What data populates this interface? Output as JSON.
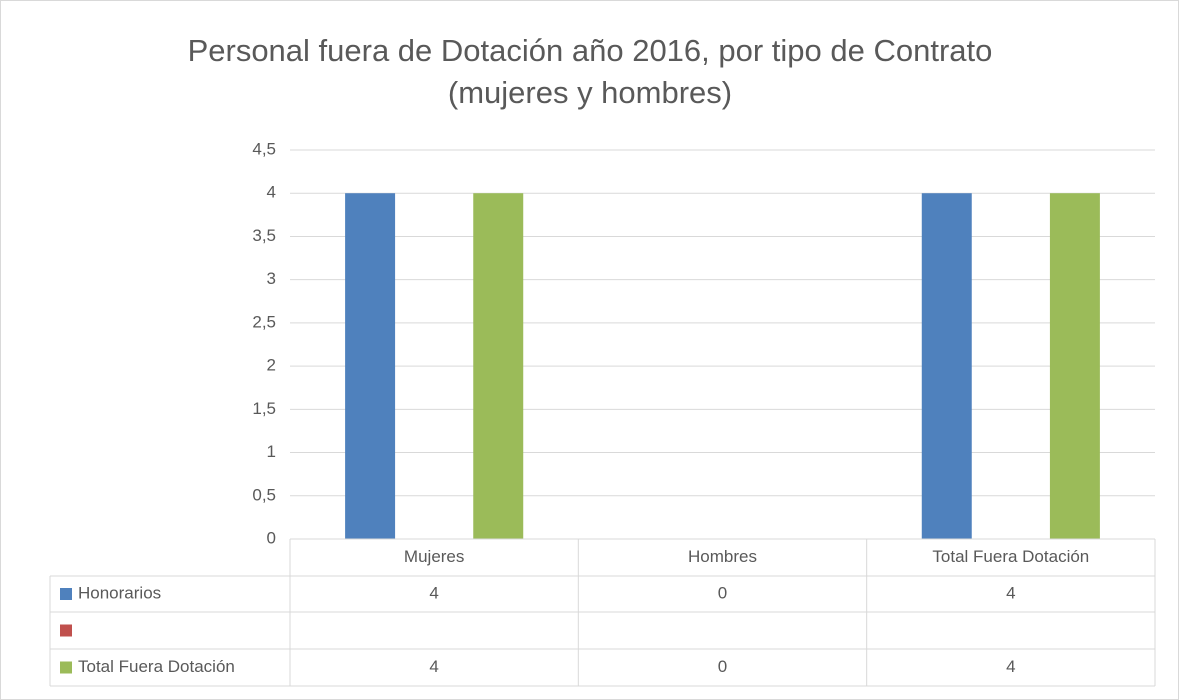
{
  "chart_data": {
    "type": "bar",
    "title": "Personal fuera de Dotación año 2016, por tipo de Contrato (mujeres y hombres)",
    "categories": [
      "Mujeres",
      "Hombres",
      "Total Fuera Dotación"
    ],
    "series": [
      {
        "name": "Honorarios",
        "color": "#4f81bd",
        "values": [
          4,
          0,
          4
        ]
      },
      {
        "name": null,
        "color": "#c0504d",
        "values": [
          null,
          null,
          null
        ]
      },
      {
        "name": "Total Fuera Dotación",
        "color": "#9bbb59",
        "values": [
          4,
          0,
          4
        ]
      }
    ],
    "ylim": [
      0,
      4.5
    ],
    "yticks": [
      0,
      {
        "value": 0.5,
        "label": "0,5"
      },
      1,
      {
        "value": 1.5,
        "label": "1,5"
      },
      2,
      {
        "value": 2.5,
        "label": "2,5"
      },
      3,
      {
        "value": 3.5,
        "label": "3,5"
      },
      4,
      {
        "value": 4.5,
        "label": "4,5"
      }
    ],
    "grid": true,
    "data_table": true
  }
}
